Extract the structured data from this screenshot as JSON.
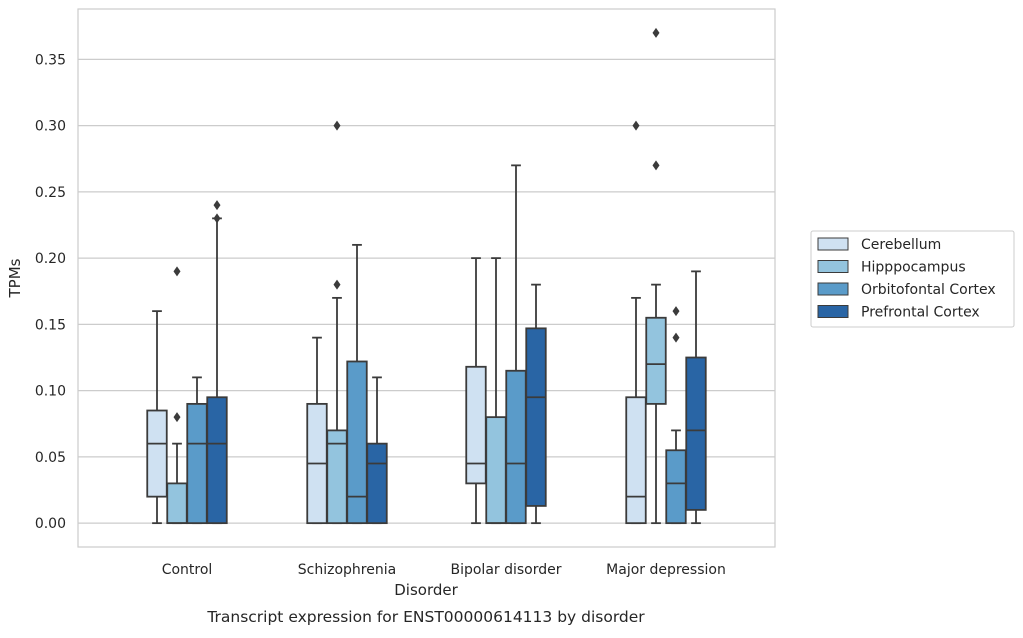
{
  "chart_data": {
    "type": "boxplot",
    "title": "",
    "xlabel": "Disorder",
    "ylabel": "TPMs",
    "caption": "Transcript expression for ENST00000614113 by disorder",
    "categories": [
      "Control",
      "Schizophrenia",
      "Bipolar disorder",
      "Major depression"
    ],
    "ylim": [
      -0.018,
      0.388
    ],
    "yticks": [
      0.0,
      0.05,
      0.1,
      0.15,
      0.2,
      0.25,
      0.3,
      0.35
    ],
    "ytick_labels": [
      "0.00",
      "0.05",
      "0.10",
      "0.15",
      "0.20",
      "0.25",
      "0.30",
      "0.35"
    ],
    "grid": "horizontal",
    "legend_position": "right",
    "series": [
      {
        "name": "Cerebellum",
        "color": "#cfe1f2",
        "boxes": [
          {
            "whisker_low": 0.0,
            "q1": 0.02,
            "median": 0.06,
            "q3": 0.085,
            "whisker_high": 0.16,
            "outliers": []
          },
          {
            "whisker_low": 0.0,
            "q1": 0.0,
            "median": 0.045,
            "q3": 0.09,
            "whisker_high": 0.14,
            "outliers": []
          },
          {
            "whisker_low": 0.0,
            "q1": 0.03,
            "median": 0.045,
            "q3": 0.118,
            "whisker_high": 0.2,
            "outliers": []
          },
          {
            "whisker_low": 0.0,
            "q1": 0.0,
            "median": 0.02,
            "q3": 0.095,
            "whisker_high": 0.17,
            "outliers": [
              0.3
            ]
          }
        ]
      },
      {
        "name": "Hipppocampus",
        "color": "#93c4de",
        "boxes": [
          {
            "whisker_low": 0.0,
            "q1": 0.0,
            "median": 0.0,
            "q3": 0.03,
            "whisker_high": 0.06,
            "outliers": [
              0.08,
              0.19
            ]
          },
          {
            "whisker_low": 0.0,
            "q1": 0.0,
            "median": 0.06,
            "q3": 0.07,
            "whisker_high": 0.17,
            "outliers": [
              0.18,
              0.3
            ]
          },
          {
            "whisker_low": 0.0,
            "q1": 0.0,
            "median": 0.0,
            "q3": 0.08,
            "whisker_high": 0.2,
            "outliers": []
          },
          {
            "whisker_low": 0.0,
            "q1": 0.09,
            "median": 0.12,
            "q3": 0.155,
            "whisker_high": 0.18,
            "outliers": [
              0.27,
              0.37
            ]
          }
        ]
      },
      {
        "name": "Orbitofontal Cortex",
        "color": "#5a9bc9",
        "boxes": [
          {
            "whisker_low": 0.0,
            "q1": 0.0,
            "median": 0.06,
            "q3": 0.09,
            "whisker_high": 0.11,
            "outliers": []
          },
          {
            "whisker_low": 0.0,
            "q1": 0.0,
            "median": 0.02,
            "q3": 0.122,
            "whisker_high": 0.21,
            "outliers": []
          },
          {
            "whisker_low": 0.0,
            "q1": 0.0,
            "median": 0.045,
            "q3": 0.115,
            "whisker_high": 0.27,
            "outliers": []
          },
          {
            "whisker_low": 0.0,
            "q1": 0.0,
            "median": 0.03,
            "q3": 0.055,
            "whisker_high": 0.07,
            "outliers": [
              0.14,
              0.16
            ]
          }
        ]
      },
      {
        "name": "Prefrontal Cortex",
        "color": "#2965a5",
        "boxes": [
          {
            "whisker_low": 0.0,
            "q1": 0.0,
            "median": 0.06,
            "q3": 0.095,
            "whisker_high": 0.23,
            "outliers": [
              0.23,
              0.24
            ]
          },
          {
            "whisker_low": 0.0,
            "q1": 0.0,
            "median": 0.045,
            "q3": 0.06,
            "whisker_high": 0.11,
            "outliers": []
          },
          {
            "whisker_low": 0.0,
            "q1": 0.013,
            "median": 0.095,
            "q3": 0.147,
            "whisker_high": 0.18,
            "outliers": []
          },
          {
            "whisker_low": 0.0,
            "q1": 0.01,
            "median": 0.07,
            "q3": 0.125,
            "whisker_high": 0.19,
            "outliers": []
          }
        ]
      }
    ]
  }
}
